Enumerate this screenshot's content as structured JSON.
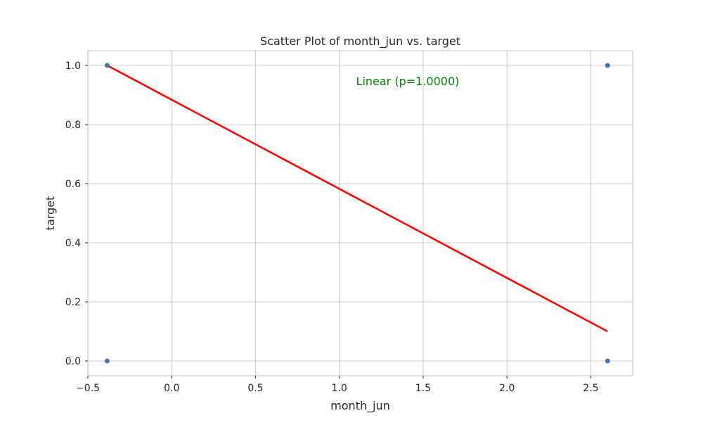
{
  "chart_data": {
    "type": "scatter",
    "title": "Scatter Plot of month_jun vs. target",
    "xlabel": "month_jun",
    "ylabel": "target",
    "xlim": [
      -0.5,
      2.75
    ],
    "ylim": [
      -0.05,
      1.05
    ],
    "xticks": [
      -0.5,
      0.0,
      0.5,
      1.0,
      1.5,
      2.0,
      2.5
    ],
    "xtick_labels": [
      "−0.5",
      "0.0",
      "0.5",
      "1.0",
      "1.5",
      "2.0",
      "2.5"
    ],
    "yticks": [
      0.0,
      0.2,
      0.4,
      0.6,
      0.8,
      1.0
    ],
    "ytick_labels": [
      "0.0",
      "0.2",
      "0.4",
      "0.6",
      "0.8",
      "1.0"
    ],
    "grid": true,
    "points": [
      {
        "x": -0.385,
        "y": 1.0
      },
      {
        "x": -0.385,
        "y": 0.0
      },
      {
        "x": 2.6,
        "y": 1.0
      },
      {
        "x": 2.6,
        "y": 0.0
      }
    ],
    "fit_line": {
      "x": [
        -0.385,
        2.6
      ],
      "y": [
        1.0,
        0.1
      ]
    },
    "annotation": "Linear (p=1.0000)",
    "annotation_pos": {
      "x": 1.1,
      "y": 0.945
    },
    "colors": {
      "points": "#4c72b0",
      "fit_line": "#ff0000",
      "annotation": "#008000",
      "grid": "#cccccc",
      "frame": "#cccccc"
    }
  }
}
